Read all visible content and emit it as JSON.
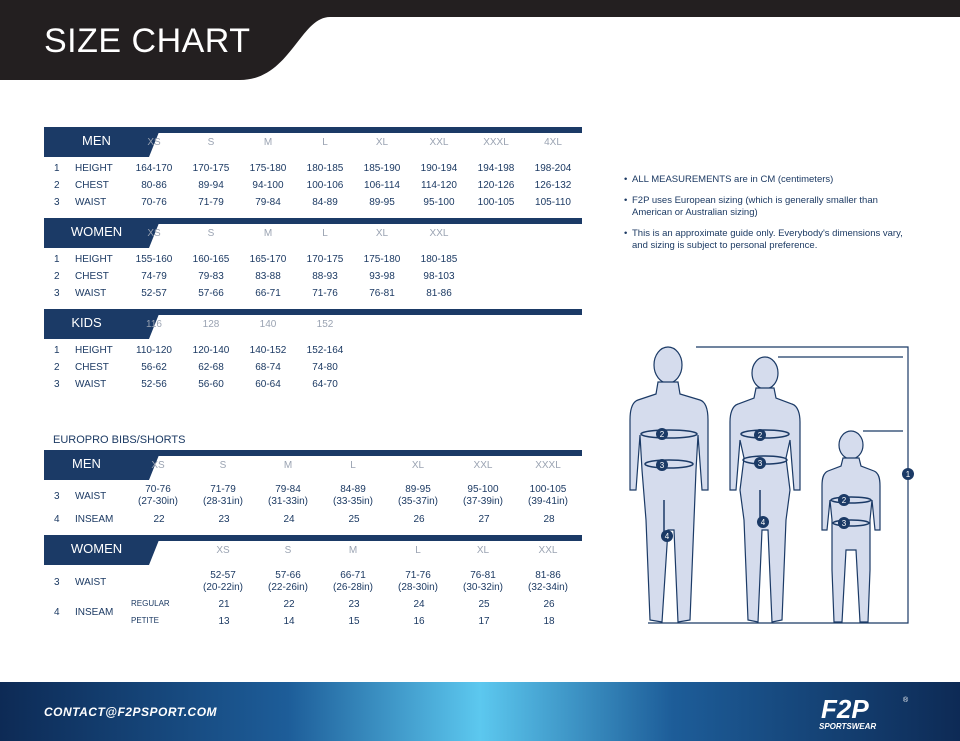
{
  "header": {
    "title": "SIZE CHART"
  },
  "men": {
    "label": "MEN",
    "sizes": [
      "XS",
      "S",
      "M",
      "L",
      "XL",
      "XXL",
      "XXXL",
      "4XL"
    ],
    "rows": [
      {
        "num": "1",
        "label": "HEIGHT",
        "values": [
          "164-170",
          "170-175",
          "175-180",
          "180-185",
          "185-190",
          "190-194",
          "194-198",
          "198-204"
        ]
      },
      {
        "num": "2",
        "label": "CHEST",
        "values": [
          "80-86",
          "89-94",
          "94-100",
          "100-106",
          "106-114",
          "114-120",
          "120-126",
          "126-132"
        ]
      },
      {
        "num": "3",
        "label": "WAIST",
        "values": [
          "70-76",
          "71-79",
          "79-84",
          "84-89",
          "89-95",
          "95-100",
          "100-105",
          "105-110"
        ]
      }
    ]
  },
  "women": {
    "label": "WOMEN",
    "sizes": [
      "XS",
      "S",
      "M",
      "L",
      "XL",
      "XXL"
    ],
    "rows": [
      {
        "num": "1",
        "label": "HEIGHT",
        "values": [
          "155-160",
          "160-165",
          "165-170",
          "170-175",
          "175-180",
          "180-185"
        ]
      },
      {
        "num": "2",
        "label": "CHEST",
        "values": [
          "74-79",
          "79-83",
          "83-88",
          "88-93",
          "93-98",
          "98-103"
        ]
      },
      {
        "num": "3",
        "label": "WAIST",
        "values": [
          "52-57",
          "57-66",
          "66-71",
          "71-76",
          "76-81",
          "81-86"
        ]
      }
    ]
  },
  "kids": {
    "label": "KIDS",
    "sizes": [
      "116",
      "128",
      "140",
      "152"
    ],
    "rows": [
      {
        "num": "1",
        "label": "HEIGHT",
        "values": [
          "110-120",
          "120-140",
          "140-152",
          "152-164"
        ]
      },
      {
        "num": "2",
        "label": "CHEST",
        "values": [
          "56-62",
          "62-68",
          "68-74",
          "74-80"
        ]
      },
      {
        "num": "3",
        "label": "WAIST",
        "values": [
          "52-56",
          "56-60",
          "60-64",
          "64-70"
        ]
      }
    ]
  },
  "europro": {
    "title": "EUROPRO BIBS/SHORTS",
    "men": {
      "label": "MEN",
      "sizes": [
        "XS",
        "S",
        "M",
        "L",
        "XL",
        "XXL",
        "XXXL"
      ],
      "waist_num": "3",
      "waist_label": "WAIST",
      "waist_cm": [
        "70-76",
        "71-79",
        "79-84",
        "84-89",
        "89-95",
        "95-100",
        "100-105"
      ],
      "waist_in": [
        "(27-30in)",
        "(28-31in)",
        "(31-33in)",
        "(33-35in)",
        "(35-37in)",
        "(37-39in)",
        "(39-41in)"
      ],
      "inseam_num": "4",
      "inseam_label": "INSEAM",
      "inseam": [
        "22",
        "23",
        "24",
        "25",
        "26",
        "27",
        "28"
      ]
    },
    "women": {
      "label": "WOMEN",
      "sizes": [
        "XS",
        "S",
        "M",
        "L",
        "XL",
        "XXL"
      ],
      "waist_num": "3",
      "waist_label": "WAIST",
      "waist_cm": [
        "52-57",
        "57-66",
        "66-71",
        "71-76",
        "76-81",
        "81-86"
      ],
      "waist_in": [
        "(20-22in)",
        "(22-26in)",
        "(26-28in)",
        "(28-30in)",
        "(30-32in)",
        "(32-34in)"
      ],
      "inseam_num": "4",
      "inseam_label": "INSEAM",
      "regular_label": "REGULAR",
      "regular": [
        "21",
        "22",
        "23",
        "24",
        "25",
        "26"
      ],
      "petite_label": "PETITE",
      "petite": [
        "13",
        "14",
        "15",
        "16",
        "17",
        "18"
      ]
    }
  },
  "notes": {
    "bullet": "•",
    "items": [
      "ALL MEASUREMENTS are in CM (centimeters)",
      "F2P uses European sizing (which is generally smaller than American or Australian sizing)",
      "This is an approximate guide only. Everybody's dimensions vary, and sizing is subject to personal preference."
    ]
  },
  "figure": {
    "markers": [
      "1",
      "2",
      "3",
      "4"
    ]
  },
  "footer": {
    "contact": "CONTACT@F2PSPORT.COM",
    "logo_text": "F2P",
    "logo_sub": "SPORTSWEAR",
    "logo_reg": "®"
  },
  "colors": {
    "navy": "#1b3a66",
    "header_black": "#231f20",
    "footer_light": "#5cc8ef",
    "figure_fill": "#d5dced"
  }
}
